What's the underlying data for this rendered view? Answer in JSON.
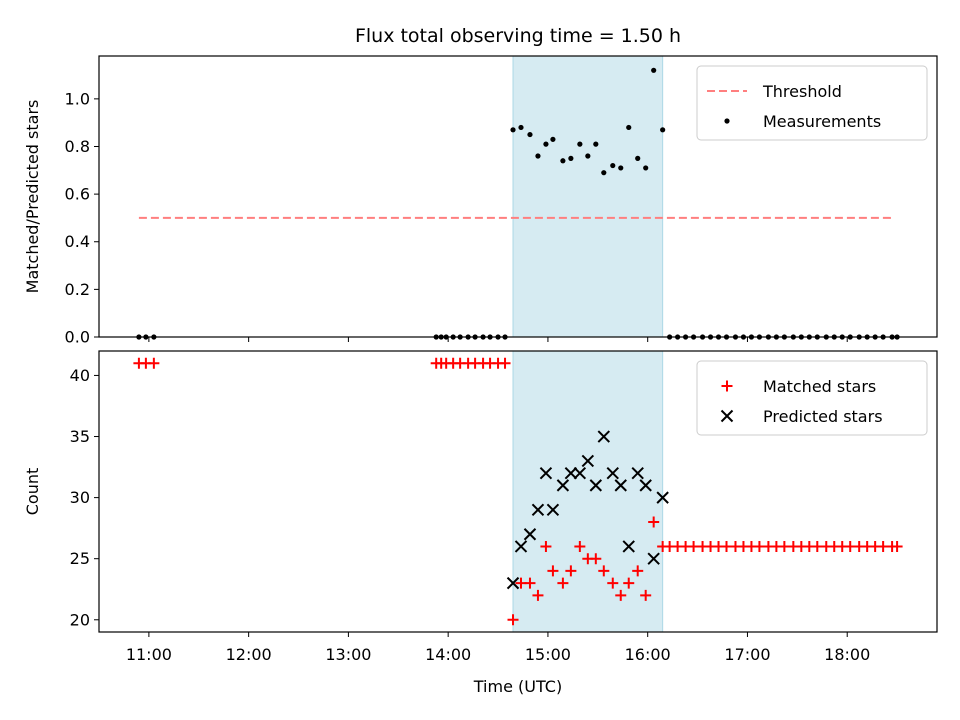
{
  "chart_data": {
    "type": "scatter",
    "title": "Flux total observing time = 1.50 h",
    "xlabel": "Time (UTC)",
    "x_ticks": [
      "11:00",
      "12:00",
      "13:00",
      "14:00",
      "15:00",
      "16:00",
      "17:00",
      "18:00"
    ],
    "x_tick_hours": [
      11,
      12,
      13,
      14,
      15,
      16,
      17,
      18
    ],
    "xlim": [
      10.5,
      18.9
    ],
    "highlight_span": [
      14.65,
      16.15
    ],
    "colors": {
      "highlight": "#add8e6",
      "threshold": "#ff7f7f",
      "measurements": "#000000",
      "matched": "#ff0000",
      "predicted": "#000000"
    },
    "panels": [
      {
        "ylabel": "Matched/Predicted stars",
        "ylim": [
          0,
          1.18
        ],
        "y_ticks": [
          "0.0",
          "0.2",
          "0.4",
          "0.6",
          "0.8",
          "1.0"
        ],
        "y_tick_values": [
          0,
          0.2,
          0.4,
          0.6,
          0.8,
          1.0
        ],
        "legend_position": "top-right",
        "series": [
          {
            "name": "Threshold",
            "kind": "dashed-line",
            "x": [
              10.9,
              18.45
            ],
            "y": [
              0.5,
              0.5
            ]
          },
          {
            "name": "Measurements",
            "kind": "dot",
            "x": [
              10.9,
              10.97,
              11.05,
              13.88,
              13.93,
              13.98,
              14.05,
              14.12,
              14.2,
              14.27,
              14.35,
              14.42,
              14.5,
              14.57,
              14.65,
              14.73,
              14.82,
              14.9,
              14.98,
              15.05,
              15.15,
              15.23,
              15.32,
              15.4,
              15.48,
              15.56,
              15.65,
              15.73,
              15.81,
              15.9,
              15.98,
              16.06,
              16.15,
              16.22,
              16.3,
              16.38,
              16.46,
              16.55,
              16.63,
              16.71,
              16.79,
              16.88,
              16.96,
              17.04,
              17.12,
              17.21,
              17.29,
              17.37,
              17.46,
              17.54,
              17.62,
              17.7,
              17.79,
              17.87,
              17.95,
              18.03,
              18.12,
              18.2,
              18.28,
              18.36,
              18.45,
              18.5
            ],
            "y": [
              0,
              0,
              0,
              0,
              0,
              0,
              0,
              0,
              0,
              0,
              0,
              0,
              0,
              0,
              0.87,
              0.88,
              0.85,
              0.76,
              0.81,
              0.83,
              0.74,
              0.75,
              0.81,
              0.76,
              0.81,
              0.69,
              0.72,
              0.71,
              0.88,
              0.75,
              0.71,
              1.12,
              0.87,
              0,
              0,
              0,
              0,
              0,
              0,
              0,
              0,
              0,
              0,
              0,
              0,
              0,
              0,
              0,
              0,
              0,
              0,
              0,
              0,
              0,
              0,
              0,
              0,
              0,
              0,
              0,
              0,
              0
            ]
          }
        ]
      },
      {
        "ylabel": "Count",
        "ylim": [
          19,
          42
        ],
        "y_ticks": [
          "20",
          "25",
          "30",
          "35",
          "40"
        ],
        "y_tick_values": [
          20,
          25,
          30,
          35,
          40
        ],
        "legend_position": "top-right",
        "series": [
          {
            "name": "Matched stars",
            "kind": "plus",
            "x": [
              10.9,
              10.97,
              11.05,
              13.88,
              13.93,
              13.98,
              14.05,
              14.12,
              14.2,
              14.27,
              14.35,
              14.42,
              14.5,
              14.57,
              14.65,
              14.73,
              14.82,
              14.9,
              14.98,
              15.05,
              15.15,
              15.23,
              15.32,
              15.4,
              15.48,
              15.56,
              15.65,
              15.73,
              15.81,
              15.9,
              15.98,
              16.06,
              16.15,
              16.22,
              16.3,
              16.38,
              16.46,
              16.55,
              16.63,
              16.71,
              16.79,
              16.88,
              16.96,
              17.04,
              17.12,
              17.21,
              17.29,
              17.37,
              17.46,
              17.54,
              17.62,
              17.7,
              17.79,
              17.87,
              17.95,
              18.03,
              18.12,
              18.2,
              18.28,
              18.36,
              18.45,
              18.5
            ],
            "y": [
              41,
              41,
              41,
              41,
              41,
              41,
              41,
              41,
              41,
              41,
              41,
              41,
              41,
              41,
              20,
              23,
              23,
              22,
              26,
              24,
              23,
              24,
              26,
              25,
              25,
              24,
              23,
              22,
              23,
              24,
              22,
              28,
              26,
              26,
              26,
              26,
              26,
              26,
              26,
              26,
              26,
              26,
              26,
              26,
              26,
              26,
              26,
              26,
              26,
              26,
              26,
              26,
              26,
              26,
              26,
              26,
              26,
              26,
              26,
              26,
              26,
              26
            ]
          },
          {
            "name": "Predicted stars",
            "kind": "cross",
            "x": [
              14.65,
              14.73,
              14.82,
              14.9,
              14.98,
              15.05,
              15.15,
              15.23,
              15.32,
              15.4,
              15.48,
              15.56,
              15.65,
              15.73,
              15.81,
              15.9,
              15.98,
              16.06,
              16.15
            ],
            "y": [
              23,
              26,
              27,
              29,
              32,
              29,
              31,
              32,
              32,
              33,
              31,
              35,
              32,
              31,
              26,
              32,
              31,
              25,
              30
            ]
          }
        ]
      }
    ]
  }
}
